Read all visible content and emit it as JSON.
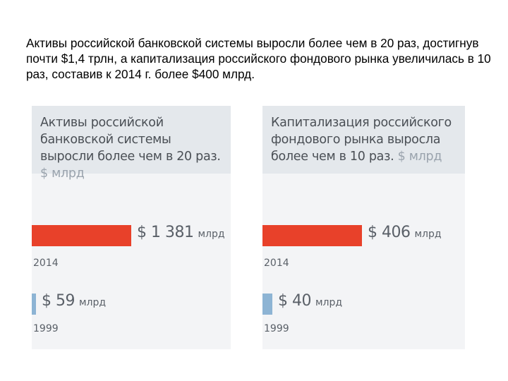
{
  "intro_text": "Активы российской банковской системы выросли более чем в 20 раз, достигнув почти $1,4 трлн, а капитализация российского фондового рынка увеличилась в 10 раз, составив к 2014 г. более $400 млрд.",
  "chart_data": [
    {
      "type": "bar",
      "title": "Активы российской банковской системы выросли более чем в 20 раз.",
      "unit_label": "$ млрд",
      "categories": [
        "2014",
        "1999"
      ],
      "values": [
        1381,
        59
      ],
      "value_labels": [
        "$ 1 381",
        "$ 59"
      ],
      "value_suffix": "млрд",
      "colors": [
        "#e8412a",
        "#8db4d4"
      ]
    },
    {
      "type": "bar",
      "title": "Капитализация российского фондового рынка выросла более чем в 10 раз.",
      "unit_label": "$ млрд",
      "categories": [
        "2014",
        "1999"
      ],
      "values": [
        406,
        40
      ],
      "value_labels": [
        "$ 406",
        "$ 40"
      ],
      "value_suffix": "млрд",
      "colors": [
        "#e8412a",
        "#8db4d4"
      ]
    }
  ]
}
